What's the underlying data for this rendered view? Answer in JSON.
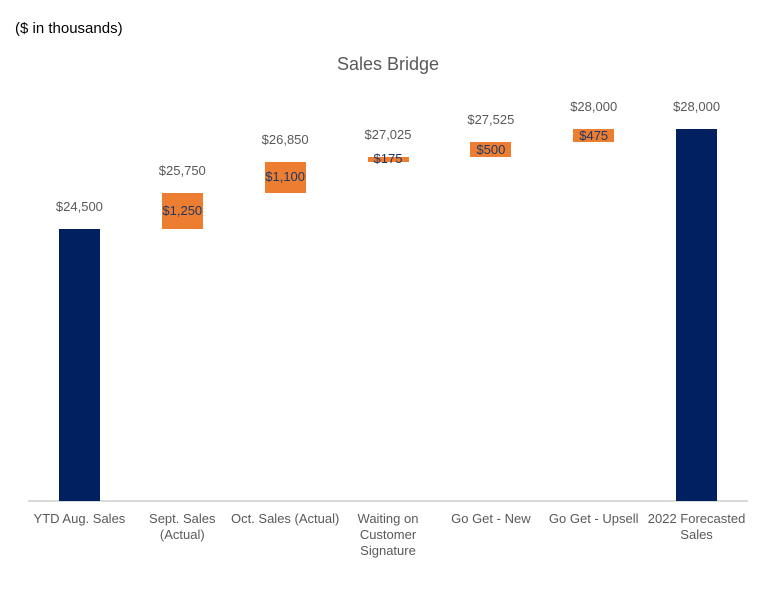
{
  "note": "($ in thousands)",
  "chart_data": {
    "type": "bar",
    "subtype": "waterfall",
    "title": "Sales Bridge",
    "unit_note": "($ in thousands)",
    "grid": false,
    "legend": false,
    "axis_range": [
      15000,
      30000
    ],
    "colors": {
      "total_bar": "#002060",
      "delta_bar": "#ED7D31",
      "outside_label": "#595959",
      "inside_label": "#1F3864",
      "axis_line": "#D9D9D9",
      "title": "#595959"
    },
    "bars": [
      {
        "category": "YTD Aug. Sales",
        "category_lines": [
          "YTD Aug. Sales"
        ],
        "kind": "total",
        "start": 0,
        "end": 24500,
        "cumulative_label": "$24,500",
        "delta_label": null
      },
      {
        "category": "Sept. Sales (Actual)",
        "category_lines": [
          "Sept. Sales",
          "(Actual)"
        ],
        "kind": "delta",
        "start": 24500,
        "end": 25750,
        "cumulative_label": "$25,750",
        "delta_label": "$1,250"
      },
      {
        "category": "Oct. Sales (Actual)",
        "category_lines": [
          "Oct. Sales (Actual)"
        ],
        "kind": "delta",
        "start": 25750,
        "end": 26850,
        "cumulative_label": "$26,850",
        "delta_label": "$1,100"
      },
      {
        "category": "Waiting on Customer Signature",
        "category_lines": [
          "Waiting on",
          "Customer",
          "Signature"
        ],
        "kind": "delta",
        "start": 26850,
        "end": 27025,
        "cumulative_label": "$27,025",
        "delta_label": "$175"
      },
      {
        "category": "Go Get - New",
        "category_lines": [
          "Go Get - New"
        ],
        "kind": "delta",
        "start": 27025,
        "end": 27525,
        "cumulative_label": "$27,525",
        "delta_label": "$500"
      },
      {
        "category": "Go Get - Upsell",
        "category_lines": [
          "Go Get - Upsell"
        ],
        "kind": "delta",
        "start": 27525,
        "end": 28000,
        "cumulative_label": "$28,000",
        "delta_label": "$475"
      },
      {
        "category": "2022 Forecasted Sales",
        "category_lines": [
          "2022 Forecasted",
          "Sales"
        ],
        "kind": "total",
        "start": 0,
        "end": 28000,
        "cumulative_label": "$28,000",
        "delta_label": null
      }
    ]
  }
}
